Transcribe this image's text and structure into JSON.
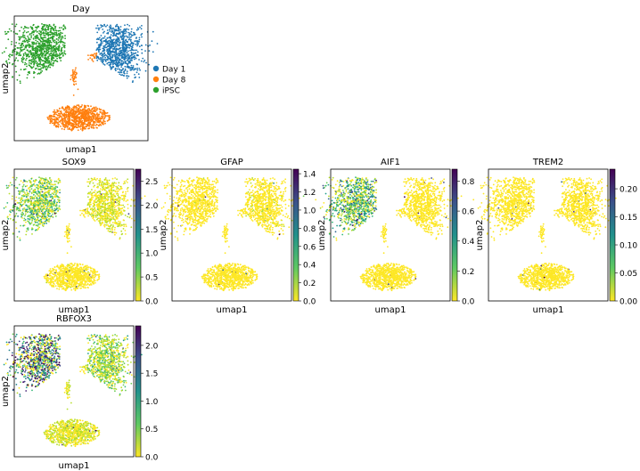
{
  "colormap": "viridis_r",
  "chart_data": [
    {
      "type": "scatter",
      "title": "Day",
      "xlabel": "umap1",
      "ylabel": "umap2",
      "grid": false,
      "legend": "right",
      "legend_entries": [
        {
          "label": "Day 1",
          "color": "#1f77b4"
        },
        {
          "label": "Day 8",
          "color": "#ff7f0e"
        },
        {
          "label": "iPSC",
          "color": "#2ca02c"
        }
      ],
      "clusters": [
        {
          "name": "iPSC",
          "center": [
            -6.5,
            5.5
          ],
          "color": "#2ca02c"
        },
        {
          "name": "Day 1",
          "center": [
            6.0,
            5.2
          ],
          "color": "#1f77b4"
        },
        {
          "name": "Day 8",
          "center": [
            -0.5,
            -5.8
          ],
          "color": "#ff7f0e"
        },
        {
          "name": "Day 8 small",
          "center": [
            -1.5,
            0.5
          ],
          "color": "#ff7f0e"
        }
      ]
    },
    {
      "type": "scatter",
      "title": "SOX9",
      "xlabel": "umap1",
      "ylabel": "umap2",
      "grid": false,
      "colorbar": {
        "min": 0.0,
        "max": 2.75,
        "ticks": [
          "0.0",
          "0.5",
          "1.0",
          "1.5",
          "2.0",
          "2.5"
        ]
      },
      "expression_mean": {
        "iPSC": 0.45,
        "Day 1": 0.12,
        "Day 8": 0.05
      }
    },
    {
      "type": "scatter",
      "title": "GFAP",
      "xlabel": "umap1",
      "ylabel": "umap2",
      "grid": false,
      "colorbar": {
        "min": 0.0,
        "max": 1.45,
        "ticks": [
          "0.0",
          "0.2",
          "0.4",
          "0.6",
          "0.8",
          "1.0",
          "1.2",
          "1.4"
        ]
      },
      "expression_mean": {
        "iPSC": 0.02,
        "Day 1": 0.03,
        "Day 8": 0.02
      }
    },
    {
      "type": "scatter",
      "title": "AIF1",
      "xlabel": "umap1",
      "ylabel": "umap2",
      "grid": false,
      "colorbar": {
        "min": 0.0,
        "max": 0.88,
        "ticks": [
          "0.0",
          "0.2",
          "0.4",
          "0.6",
          "0.8"
        ]
      },
      "expression_mean": {
        "iPSC": 0.22,
        "Day 1": 0.01,
        "Day 8": 0.01
      }
    },
    {
      "type": "scatter",
      "title": "TREM2",
      "xlabel": "umap1",
      "ylabel": "umap2",
      "grid": false,
      "colorbar": {
        "min": 0.0,
        "max": 0.235,
        "ticks": [
          "0.00",
          "0.05",
          "0.10",
          "0.15",
          "0.20"
        ]
      },
      "expression_mean": {
        "iPSC": 0.0,
        "Day 1": 0.0,
        "Day 8": 0.0
      }
    },
    {
      "type": "scatter",
      "title": "RBFOX3",
      "xlabel": "umap1",
      "ylabel": "umap2",
      "grid": false,
      "colorbar": {
        "min": 0.0,
        "max": 2.35,
        "ticks": [
          "0.0",
          "0.5",
          "1.0",
          "1.5",
          "2.0"
        ]
      },
      "expression_mean": {
        "iPSC": 1.05,
        "Day 1": 0.3,
        "Day 8": 0.12
      }
    }
  ]
}
